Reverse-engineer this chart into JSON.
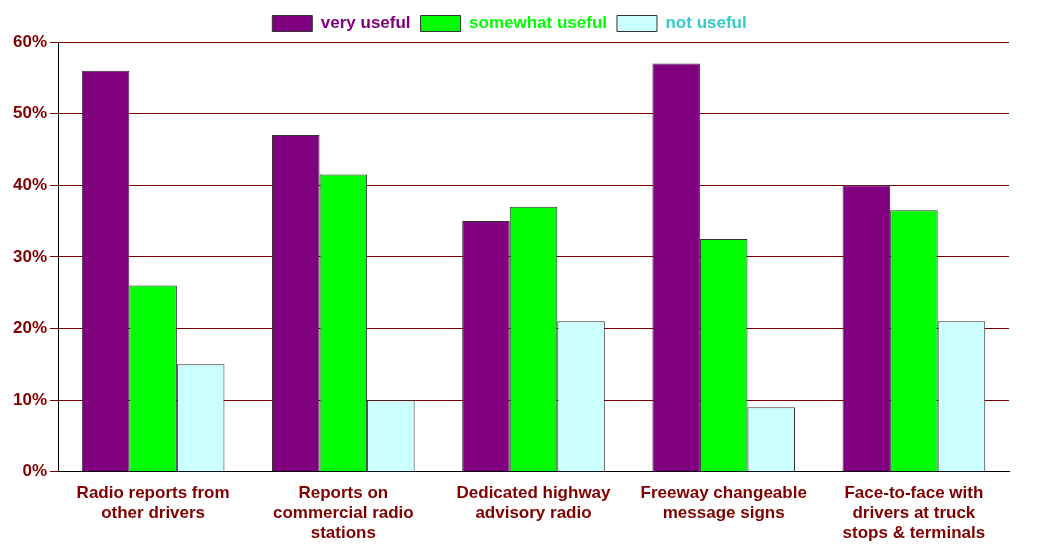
{
  "chart_data": {
    "type": "bar",
    "categories": [
      "Radio reports from other drivers",
      "Reports on commercial radio stations",
      "Dedicated highway advisory radio",
      "Freeway changeable message signs",
      "Face-to-face with drivers at truck stops & terminals"
    ],
    "series": [
      {
        "name": "very useful",
        "color": "#800080",
        "values": [
          56,
          47,
          35,
          57,
          40
        ]
      },
      {
        "name": "somewhat useful",
        "color": "#00ff00",
        "values": [
          26,
          41.5,
          37,
          32.5,
          36.5
        ]
      },
      {
        "name": "not useful",
        "color": "#ccffff",
        "values": [
          15,
          10,
          21,
          9,
          21
        ]
      }
    ],
    "ylim": [
      0,
      60
    ],
    "yticks": [
      {
        "value": 0,
        "label": "0%"
      },
      {
        "value": 10,
        "label": "10%"
      },
      {
        "value": 20,
        "label": "20%"
      },
      {
        "value": 30,
        "label": "30%"
      },
      {
        "value": 40,
        "label": "40%"
      },
      {
        "value": 50,
        "label": "50%"
      },
      {
        "value": 60,
        "label": "60%"
      }
    ],
    "grid": "y",
    "legend": "top"
  }
}
